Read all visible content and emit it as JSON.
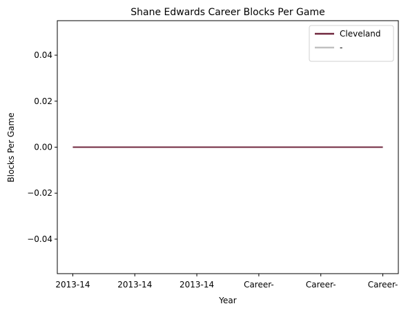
{
  "chart_data": {
    "type": "line",
    "title": "Shane Edwards  Career Blocks Per Game",
    "xlabel": "Year",
    "ylabel": "Blocks Per Game",
    "categories": [
      "2013-14",
      "2013-14",
      "2013-14",
      "Career-",
      "Career-",
      "Career-"
    ],
    "series": [
      {
        "name": "Cleveland",
        "color": "#6f263d",
        "values": [
          0,
          0,
          0,
          0,
          0,
          0
        ]
      },
      {
        "name": "-",
        "color": "#c0c0c0",
        "values": [
          0,
          0,
          0,
          0,
          0,
          0
        ]
      }
    ],
    "ylim": [
      -0.055,
      0.055
    ],
    "yticks": [
      {
        "value": -0.04,
        "label": "−0.04"
      },
      {
        "value": -0.02,
        "label": "−0.02"
      },
      {
        "value": 0,
        "label": "0.00"
      },
      0.02,
      0.04
    ],
    "legend": "upper right"
  }
}
